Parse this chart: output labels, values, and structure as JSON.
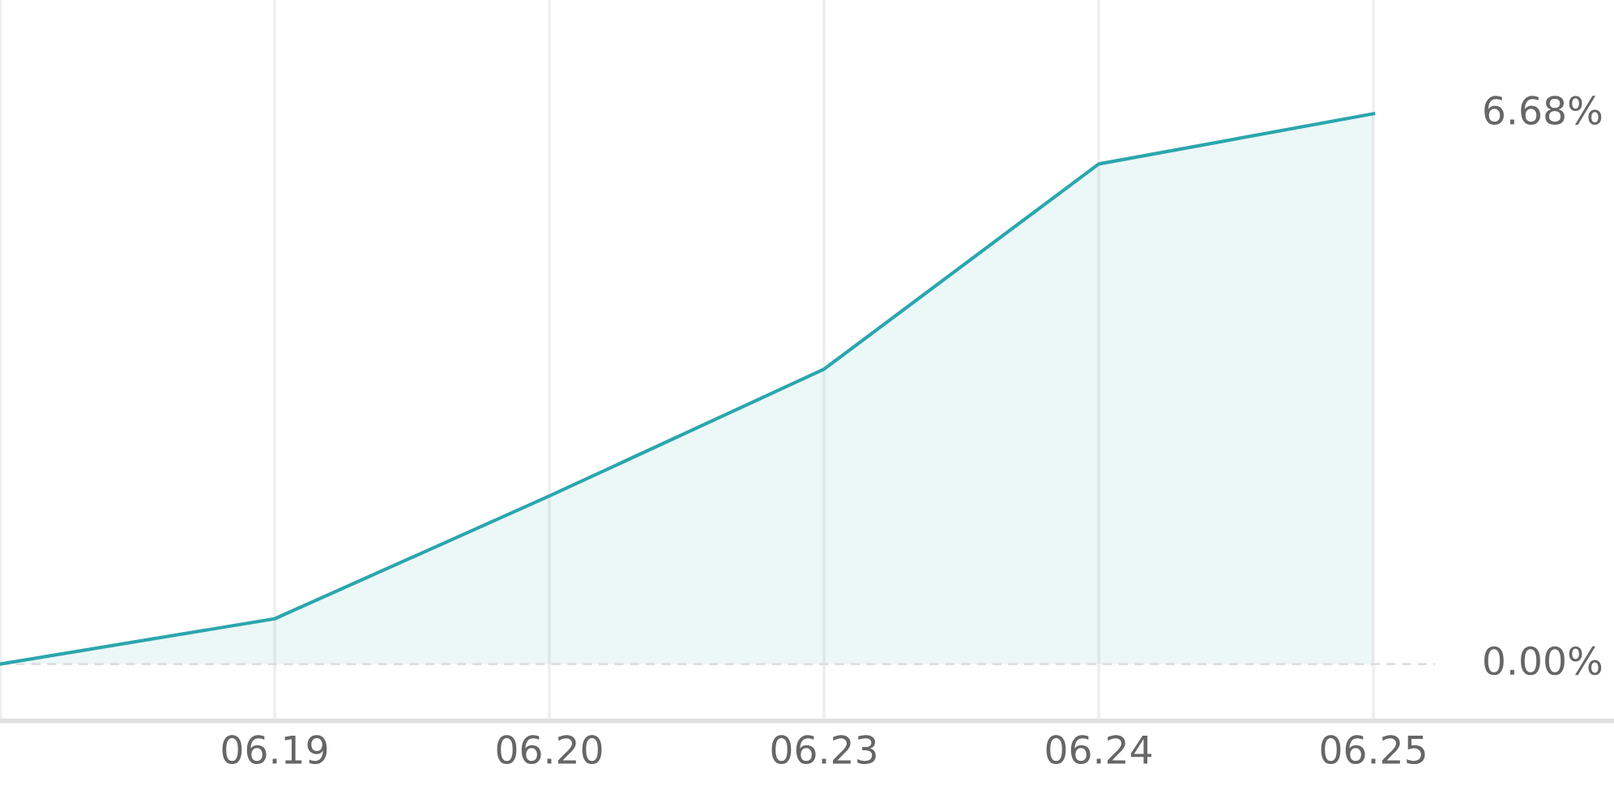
{
  "chart_data": {
    "type": "area",
    "categories": [
      null,
      "06.19",
      "06.20",
      "06.23",
      "06.24",
      "06.25"
    ],
    "series": [
      {
        "color": "#2ba6ad",
        "values": [
          0.0,
          0.55,
          2.04,
          3.58,
          6.07,
          6.68
        ]
      }
    ],
    "ylim": [
      -0.69,
      8.06
    ],
    "yticks": [
      {
        "value": 0,
        "label": "0.00%"
      },
      {
        "value": 6.68,
        "label": "6.68%"
      }
    ],
    "ref_lines": [
      {
        "axis": "y",
        "value": 0,
        "color": "#dddddd",
        "line_style": "dashed"
      }
    ],
    "grid": "x"
  }
}
